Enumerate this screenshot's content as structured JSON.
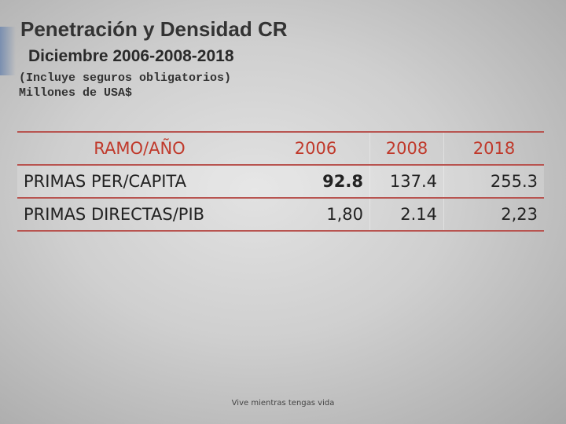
{
  "header": {
    "title": "Penetración y Densidad CR",
    "subtitle": "Diciembre 2006-2008-2018",
    "notes": [
      "(Incluye seguros obligatorios)",
      "Millones de USA$"
    ]
  },
  "table": {
    "columns": [
      "RAMO/AÑO",
      "2006",
      "2008",
      "2018"
    ],
    "rows": [
      [
        "PRIMAS PER/CAPITA",
        "92.8",
        "137.4",
        "255.3"
      ],
      [
        "PRIMAS DIRECTAS/PIB",
        "1,80",
        "2.14",
        "2,23"
      ]
    ]
  },
  "footer": "Vive mientras tengas vida"
}
